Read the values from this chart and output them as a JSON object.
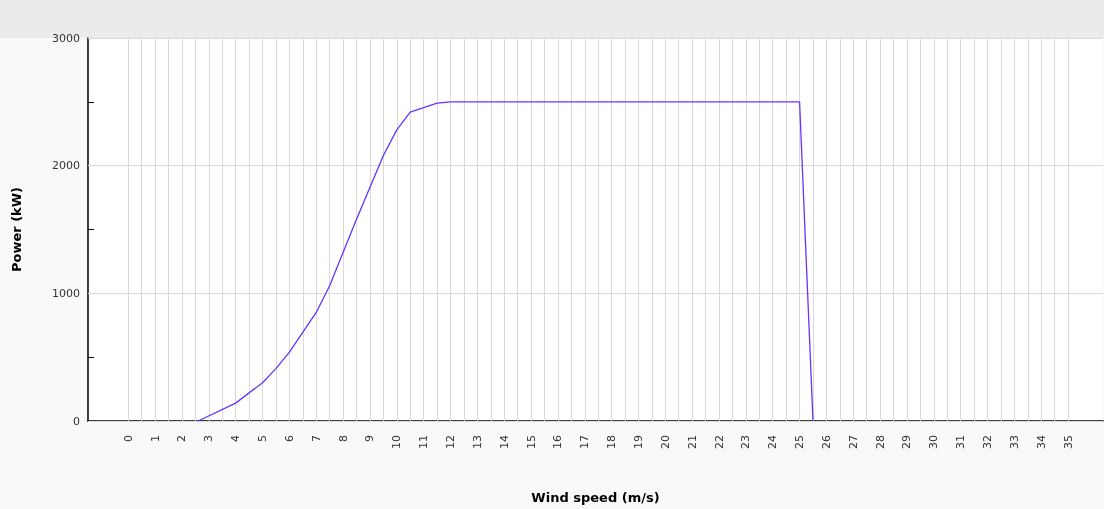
{
  "chart_data": {
    "type": "line",
    "xlabel": "Wind speed (m/s)",
    "ylabel": "Power (kW)",
    "series": [
      {
        "color": "#6633ff",
        "x": [
          2.6,
          4,
          5,
          5.5,
          6,
          7,
          7.5,
          8.5,
          9.5,
          10,
          10.5,
          11.5,
          12,
          25,
          25.5
        ],
        "values": [
          0,
          140,
          300,
          410,
          540,
          850,
          1060,
          1580,
          2080,
          2280,
          2420,
          2490,
          2500,
          2500,
          0
        ]
      }
    ],
    "xlim": [
      -1.5,
      36.3
    ],
    "xticks": [
      0,
      {
        "value": 0.5,
        "label": null
      },
      1,
      {
        "value": 1.5,
        "label": null
      },
      2,
      {
        "value": 2.5,
        "label": null
      },
      3,
      {
        "value": 3.5,
        "label": null
      },
      4,
      {
        "value": 4.5,
        "label": null
      },
      5,
      {
        "value": 5.5,
        "label": null
      },
      6,
      {
        "value": 6.5,
        "label": null
      },
      7,
      {
        "value": 7.5,
        "label": null
      },
      8,
      {
        "value": 8.5,
        "label": null
      },
      9,
      {
        "value": 9.5,
        "label": null
      },
      10,
      {
        "value": 10.5,
        "label": null
      },
      11,
      {
        "value": 11.5,
        "label": null
      },
      12,
      {
        "value": 12.5,
        "label": null
      },
      13,
      {
        "value": 13.5,
        "label": null
      },
      14,
      {
        "value": 14.5,
        "label": null
      },
      15,
      {
        "value": 15.5,
        "label": null
      },
      16,
      {
        "value": 16.5,
        "label": null
      },
      17,
      {
        "value": 17.5,
        "label": null
      },
      18,
      {
        "value": 18.5,
        "label": null
      },
      19,
      {
        "value": 19.5,
        "label": null
      },
      20,
      {
        "value": 20.5,
        "label": null
      },
      21,
      {
        "value": 21.5,
        "label": null
      },
      22,
      {
        "value": 22.5,
        "label": null
      },
      23,
      {
        "value": 23.5,
        "label": null
      },
      24,
      {
        "value": 24.5,
        "label": null
      },
      25,
      {
        "value": 25.5,
        "label": null
      },
      26,
      {
        "value": 26.5,
        "label": null
      },
      27,
      {
        "value": 27.5,
        "label": null
      },
      28,
      {
        "value": 28.5,
        "label": null
      },
      29,
      {
        "value": 29.5,
        "label": null
      },
      30,
      {
        "value": 30.5,
        "label": null
      },
      31,
      {
        "value": 31.5,
        "label": null
      },
      32,
      {
        "value": 32.5,
        "label": null
      },
      33,
      {
        "value": 33.5,
        "label": null
      },
      34,
      {
        "value": 34.5,
        "label": null
      },
      35
    ],
    "ylim": [
      0,
      3000
    ],
    "yticks": [
      0,
      {
        "value": 500,
        "label": null
      },
      1000,
      {
        "value": 1500,
        "label": null
      },
      2000,
      {
        "value": 2500,
        "label": null
      },
      3000
    ],
    "grid": true,
    "marker": "none",
    "line_style": "solid"
  }
}
